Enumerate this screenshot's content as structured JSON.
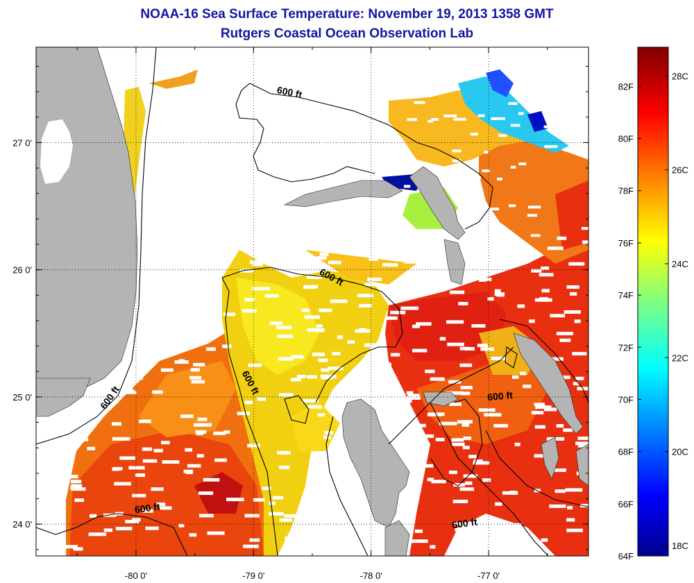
{
  "title": "NOAA-16 Sea Surface Temperature:  November 19, 2013 1358 GMT",
  "subtitle": "Rutgers Coastal Ocean Observation Lab",
  "map": {
    "lon_range": [
      -80.85,
      -76.15
    ],
    "lat_range": [
      23.75,
      27.75
    ],
    "x_ticks": [
      {
        "lon": -80,
        "label": "-80 0'"
      },
      {
        "lon": -79,
        "label": "-79 0'"
      },
      {
        "lon": -78,
        "label": "-78 0'"
      },
      {
        "lon": -77,
        "label": "-77 0'"
      }
    ],
    "y_ticks": [
      {
        "lat": 27,
        "label": "27 0'"
      },
      {
        "lat": 26,
        "label": "26 0'"
      },
      {
        "lat": 25,
        "label": "25 0'"
      },
      {
        "lat": 24,
        "label": "24 0'"
      }
    ],
    "isobath_labels": [
      {
        "text": "600 ft",
        "lon": -78.7,
        "lat": 27.37,
        "rot": 12
      },
      {
        "text": "600 ft",
        "lon": -78.35,
        "lat": 25.92,
        "rot": 28
      },
      {
        "text": "600 ft",
        "lon": -79.05,
        "lat": 25.1,
        "rot": 62
      },
      {
        "text": "600 ft",
        "lon": -80.2,
        "lat": 24.98,
        "rot": -55
      },
      {
        "text": "600 ft",
        "lon": -79.9,
        "lat": 24.1,
        "rot": -8
      },
      {
        "text": "600 ft",
        "lon": -76.9,
        "lat": 24.98,
        "rot": -5
      },
      {
        "text": "600 ft",
        "lon": -77.2,
        "lat": 23.98,
        "rot": -8
      }
    ],
    "land_color": "#b4b4b4",
    "grid": "dotted"
  },
  "colorbar": {
    "f_labels": [
      "82F",
      "80F",
      "78F",
      "76F",
      "74F",
      "72F",
      "70F",
      "68F",
      "66F",
      "64F"
    ],
    "c_labels": [
      "28C",
      "26C",
      "24C",
      "22C",
      "20C",
      "18C"
    ],
    "range_f": [
      64,
      83.5
    ],
    "colormap": "jet"
  }
}
